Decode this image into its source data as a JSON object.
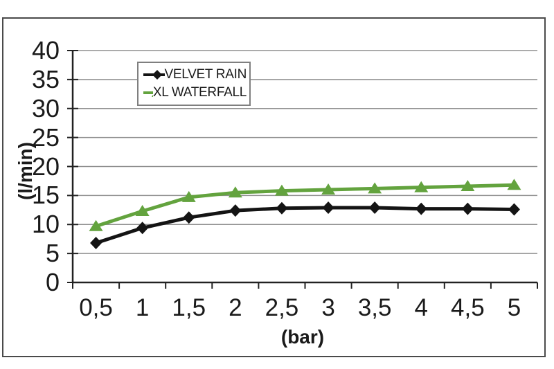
{
  "figure": {
    "background": "#ffffff",
    "outer_border_color": "#4a4a4a"
  },
  "chart_data": {
    "type": "line",
    "categories": [
      "0,5",
      "1",
      "1,5",
      "2",
      "2,5",
      "3",
      "3,5",
      "4",
      "4,5",
      "5"
    ],
    "series": [
      {
        "name": "VELVET RAIN",
        "color": "#141414",
        "marker": "diamond",
        "values": [
          6.8,
          9.4,
          11.2,
          12.4,
          12.8,
          12.9,
          12.9,
          12.7,
          12.7,
          12.6
        ]
      },
      {
        "name": "XL WATERFALL",
        "color": "#63a33e",
        "marker": "triangle",
        "values": [
          9.7,
          12.3,
          14.7,
          15.5,
          15.8,
          16.0,
          16.2,
          16.4,
          16.6,
          16.8
        ]
      }
    ],
    "title": "",
    "xlabel": "(bar)",
    "ylabel": "(l/min)",
    "ylim": [
      0,
      40
    ],
    "yticks": [
      0,
      5,
      10,
      15,
      20,
      25,
      30,
      35,
      40
    ],
    "grid": true,
    "legend_position": "top-left-inside",
    "legend_border_color": "#7f7f7f",
    "gridline_color": "#8f8f8f",
    "axis_color": "#222222",
    "text_color": "#1a1a1a"
  }
}
